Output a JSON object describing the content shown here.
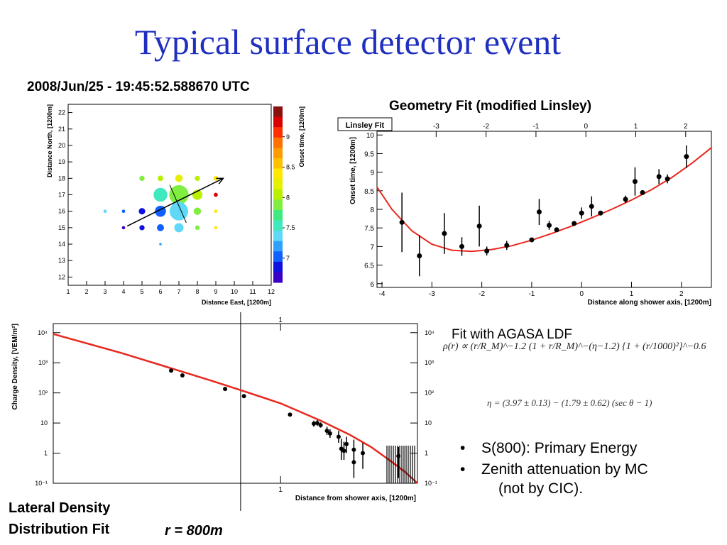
{
  "slide": {
    "title": "Typical surface detector event",
    "event_time": "2008/Jun/25 - 19:45:52.588670 UTC",
    "geometry_caption": "Geometry Fit (modified Linsley)",
    "ldf_caption": "Fit with AGASA LDF",
    "ldf_formula": "ρ(r) ∝ (r/R_M)^−1.2 (1 + r/R_M)^−(η−1.2) {1 + (r/1000)²}^−0.6",
    "eta_formula": "η = (3.97 ± 0.13) − (1.79 ± 0.62) (sec θ − 1)",
    "bullets": [
      "S(800): Primary Energy",
      "Zenith attenuation by MC"
    ],
    "bullet_note": "(not by CIC).",
    "lateral_caption_1": "Lateral Density",
    "lateral_caption_2": "Distribution Fit",
    "r_label": "r = 800m"
  },
  "colors": {
    "title": "#1f2fbf",
    "fit_line": "#e8281e",
    "points": "#000000"
  },
  "chart_data": [
    {
      "type": "scatter",
      "xlabel": "Distance East, [1200m]",
      "ylabel": "Distance North, [1200m]",
      "zlabel": "Onset time, [1200m]",
      "xlim": [
        1,
        12
      ],
      "ylim": [
        11.5,
        22.5
      ],
      "xticks": [
        1,
        2,
        3,
        4,
        5,
        6,
        7,
        8,
        9,
        10,
        11,
        12
      ],
      "yticks": [
        12,
        13,
        14,
        15,
        16,
        17,
        18,
        19,
        20,
        21,
        22
      ],
      "zlim": [
        6.6,
        9.5
      ],
      "zticks": [
        7,
        7.5,
        8,
        8.5,
        9
      ],
      "colorbar": [
        "#8b1010",
        "#d80000",
        "#ff3000",
        "#ff7000",
        "#ff9a00",
        "#ffc000",
        "#ffe800",
        "#e4f000",
        "#b8f000",
        "#80ee40",
        "#40e880",
        "#40e8c0",
        "#60d8f8",
        "#30a0ff",
        "#1060ff",
        "#1010e0",
        "#3a00c8"
      ],
      "arrow": {
        "x1": 4.2,
        "y1": 15.1,
        "x2": 9.4,
        "y2": 18.0
      },
      "arrow_cross": {
        "x1": 6.5,
        "y1": 17.6,
        "x2": 7.4,
        "y2": 15.3
      },
      "points": [
        {
          "x": 5,
          "y": 18,
          "s": 0.28,
          "c": "#80ee40"
        },
        {
          "x": 6,
          "y": 18,
          "s": 0.3,
          "c": "#b8f000"
        },
        {
          "x": 7,
          "y": 18,
          "s": 0.4,
          "c": "#e4f000"
        },
        {
          "x": 8,
          "y": 18,
          "s": 0.28,
          "c": "#b8f000"
        },
        {
          "x": 9,
          "y": 18,
          "s": 0.26,
          "c": "#ffe800"
        },
        {
          "x": 6,
          "y": 17,
          "s": 0.75,
          "c": "#40e8c0"
        },
        {
          "x": 7,
          "y": 17,
          "s": 1.05,
          "c": "#80ee40"
        },
        {
          "x": 8,
          "y": 17,
          "s": 0.55,
          "c": "#b8f000"
        },
        {
          "x": 9,
          "y": 17,
          "s": 0.22,
          "c": "#d80000"
        },
        {
          "x": 3,
          "y": 16,
          "s": 0.18,
          "c": "#60d8f8"
        },
        {
          "x": 4,
          "y": 16,
          "s": 0.18,
          "c": "#1060ff"
        },
        {
          "x": 5,
          "y": 16,
          "s": 0.35,
          "c": "#1010e0"
        },
        {
          "x": 6,
          "y": 16,
          "s": 0.6,
          "c": "#1060ff"
        },
        {
          "x": 7,
          "y": 16,
          "s": 1.0,
          "c": "#60d8f8"
        },
        {
          "x": 8,
          "y": 16,
          "s": 0.4,
          "c": "#80ee40"
        },
        {
          "x": 9,
          "y": 16,
          "s": 0.18,
          "c": "#ffe800"
        },
        {
          "x": 4,
          "y": 15,
          "s": 0.18,
          "c": "#3a00c8"
        },
        {
          "x": 5,
          "y": 15,
          "s": 0.28,
          "c": "#1010e0"
        },
        {
          "x": 6,
          "y": 15,
          "s": 0.38,
          "c": "#1060ff"
        },
        {
          "x": 7,
          "y": 15,
          "s": 0.5,
          "c": "#60d8f8"
        },
        {
          "x": 8,
          "y": 15,
          "s": 0.25,
          "c": "#80ee40"
        },
        {
          "x": 9,
          "y": 15,
          "s": 0.18,
          "c": "#ffe800"
        },
        {
          "x": 6,
          "y": 14,
          "s": 0.14,
          "c": "#30a0ff"
        }
      ]
    },
    {
      "type": "scatter",
      "title": "Linsley Fit",
      "xlabel": "Distance along shower axis, [1200m]",
      "ylabel": "Onset time, [1200m]",
      "xlim": [
        -4.1,
        2.6
      ],
      "ylim": [
        5.9,
        10.1
      ],
      "xticks": [
        -4,
        -3,
        -2,
        -1,
        0,
        1,
        2
      ],
      "yticks": [
        6,
        6.5,
        7,
        7.5,
        8,
        8.5,
        9,
        9.5,
        10
      ],
      "top_axis_ticks": [
        -3,
        -2,
        -1,
        0,
        1,
        2
      ],
      "points": [
        {
          "x": -3.6,
          "y": 7.65,
          "err": 0.8
        },
        {
          "x": -3.25,
          "y": 6.75,
          "err": 0.55
        },
        {
          "x": -2.75,
          "y": 7.35,
          "err": 0.55
        },
        {
          "x": -2.4,
          "y": 7.0,
          "err": 0.25
        },
        {
          "x": -2.05,
          "y": 7.55,
          "err": 0.55
        },
        {
          "x": -1.9,
          "y": 6.88,
          "err": 0.12
        },
        {
          "x": -1.5,
          "y": 7.03,
          "err": 0.12
        },
        {
          "x": -1.0,
          "y": 7.18,
          "err": 0.05
        },
        {
          "x": -0.85,
          "y": 7.93,
          "err": 0.35
        },
        {
          "x": -0.65,
          "y": 7.57,
          "err": 0.12
        },
        {
          "x": -0.5,
          "y": 7.45,
          "err": 0.06
        },
        {
          "x": -0.15,
          "y": 7.62,
          "err": 0.06
        },
        {
          "x": 0.0,
          "y": 7.9,
          "err": 0.15
        },
        {
          "x": 0.2,
          "y": 8.08,
          "err": 0.27
        },
        {
          "x": 0.38,
          "y": 7.9,
          "err": 0.05
        },
        {
          "x": 0.88,
          "y": 8.27,
          "err": 0.1
        },
        {
          "x": 1.07,
          "y": 8.75,
          "err": 0.38
        },
        {
          "x": 1.22,
          "y": 8.45,
          "err": 0.05
        },
        {
          "x": 1.55,
          "y": 8.88,
          "err": 0.2
        },
        {
          "x": 1.72,
          "y": 8.82,
          "err": 0.12
        },
        {
          "x": 2.1,
          "y": 9.42,
          "err": 0.3
        }
      ],
      "fit": [
        [
          -4.1,
          8.6
        ],
        [
          -3.8,
          8.0
        ],
        [
          -3.4,
          7.42
        ],
        [
          -3.0,
          7.06
        ],
        [
          -2.6,
          6.9
        ],
        [
          -2.2,
          6.87
        ],
        [
          -1.8,
          6.92
        ],
        [
          -1.4,
          7.02
        ],
        [
          -1.0,
          7.17
        ],
        [
          -0.6,
          7.35
        ],
        [
          -0.2,
          7.55
        ],
        [
          0.2,
          7.77
        ],
        [
          0.6,
          8.0
        ],
        [
          1.0,
          8.25
        ],
        [
          1.4,
          8.53
        ],
        [
          1.8,
          8.85
        ],
        [
          2.2,
          9.23
        ],
        [
          2.5,
          9.55
        ],
        [
          2.6,
          9.66
        ]
      ]
    },
    {
      "type": "scatter",
      "xlabel": "Distance from shower axis, [1200m]",
      "ylabel": "Charge Density, [VEM/m²]",
      "xscale": "log",
      "yscale": "log",
      "xlim": [
        0.1,
        4.0
      ],
      "ylim": [
        0.1,
        20000
      ],
      "xticks": [
        1
      ],
      "xtick_labels": [
        "1"
      ],
      "yticks": [
        0.1,
        1,
        10,
        100,
        1000,
        10000
      ],
      "ytick_labels": [
        "10⁻¹",
        "1",
        "10",
        "10²",
        "10³",
        "10⁴"
      ],
      "vline_x": 0.667,
      "points": [
        {
          "x": 0.33,
          "y": 550,
          "lo": 520,
          "hi": 580
        },
        {
          "x": 0.37,
          "y": 380,
          "lo": 360,
          "hi": 400
        },
        {
          "x": 0.57,
          "y": 135,
          "lo": 128,
          "hi": 142
        },
        {
          "x": 0.69,
          "y": 78,
          "lo": 74,
          "hi": 82
        },
        {
          "x": 1.1,
          "y": 19,
          "lo": 17,
          "hi": 21
        },
        {
          "x": 1.4,
          "y": 9.5,
          "lo": 7.5,
          "hi": 12
        },
        {
          "x": 1.45,
          "y": 10,
          "lo": 8,
          "hi": 12.5
        },
        {
          "x": 1.5,
          "y": 8.5,
          "lo": 7,
          "hi": 10.5
        },
        {
          "x": 1.6,
          "y": 5.5,
          "lo": 4,
          "hi": 7.5
        },
        {
          "x": 1.65,
          "y": 4.5,
          "lo": 3.2,
          "hi": 6.2
        },
        {
          "x": 1.8,
          "y": 3.5,
          "lo": 2.2,
          "hi": 5.5
        },
        {
          "x": 1.85,
          "y": 1.4,
          "lo": 0.6,
          "hi": 3
        },
        {
          "x": 1.9,
          "y": 1.2,
          "lo": 0.6,
          "hi": 2.4
        },
        {
          "x": 1.95,
          "y": 2,
          "lo": 1,
          "hi": 3.5
        },
        {
          "x": 2.1,
          "y": 1.3,
          "lo": 0.4,
          "hi": 2.8
        },
        {
          "x": 2.1,
          "y": 0.5,
          "lo": 0.15,
          "hi": 1.2
        },
        {
          "x": 2.3,
          "y": 1,
          "lo": 0.3,
          "hi": 2.2
        },
        {
          "x": 3.3,
          "y": 0.8,
          "lo": 0.15,
          "hi": 1.6
        }
      ],
      "fit": [
        [
          0.1,
          9000
        ],
        [
          0.2,
          2100
        ],
        [
          0.3,
          820
        ],
        [
          0.5,
          250
        ],
        [
          0.7,
          110
        ],
        [
          1.0,
          45
        ],
        [
          1.5,
          12
        ],
        [
          2.0,
          4.2
        ],
        [
          2.5,
          1.6
        ],
        [
          3.0,
          0.6
        ],
        [
          3.5,
          0.25
        ],
        [
          4.0,
          0.1
        ]
      ]
    }
  ]
}
